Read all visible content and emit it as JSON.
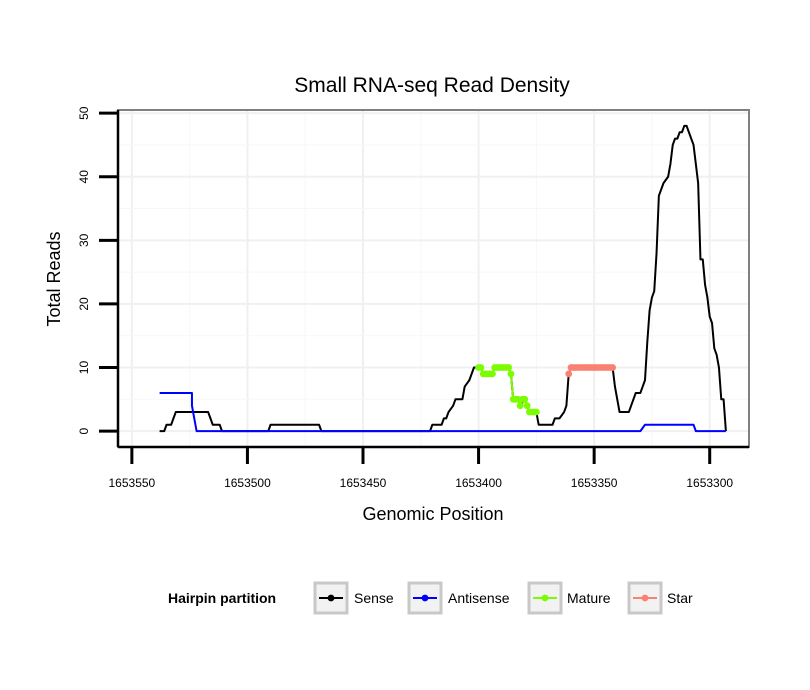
{
  "chart_data": {
    "type": "line",
    "title": "Small RNA-seq Read Density",
    "xlabel": "Genomic Position",
    "ylabel": "Total Reads",
    "xlim": [
      1653556,
      1653283
    ],
    "x_reversed": true,
    "ylim": [
      -2.5,
      50.5
    ],
    "x_ticks": [
      1653550,
      1653500,
      1653450,
      1653400,
      1653350,
      1653300
    ],
    "y_ticks": [
      0,
      10,
      20,
      30,
      40,
      50
    ],
    "grid": true,
    "legend": {
      "title": "Hairpin partition",
      "placement": "bottom",
      "entries": [
        {
          "name": "Sense",
          "color": "#000000"
        },
        {
          "name": "Antisense",
          "color": "#0000ff"
        },
        {
          "name": "Mature",
          "color": "#7cfc00"
        },
        {
          "name": "Star",
          "color": "#fa8072"
        }
      ]
    },
    "series": [
      {
        "name": "Sense",
        "color": "#000000",
        "style": "line",
        "points": [
          [
            1653538,
            0
          ],
          [
            1653536,
            0
          ],
          [
            1653535,
            1
          ],
          [
            1653533,
            1
          ],
          [
            1653532,
            2
          ],
          [
            1653531,
            3
          ],
          [
            1653526,
            3
          ],
          [
            1653522,
            3
          ],
          [
            1653520,
            3
          ],
          [
            1653517,
            3
          ],
          [
            1653516,
            2
          ],
          [
            1653515,
            1
          ],
          [
            1653512,
            1
          ],
          [
            1653511,
            0
          ],
          [
            1653502,
            0
          ],
          [
            1653492,
            0
          ],
          [
            1653491,
            0
          ],
          [
            1653490,
            1
          ],
          [
            1653470,
            1
          ],
          [
            1653469,
            1
          ],
          [
            1653468,
            0
          ],
          [
            1653432,
            0
          ],
          [
            1653421,
            0
          ],
          [
            1653420,
            1
          ],
          [
            1653416,
            1
          ],
          [
            1653415,
            2
          ],
          [
            1653414,
            2
          ],
          [
            1653413,
            3
          ],
          [
            1653411,
            4
          ],
          [
            1653410,
            5
          ],
          [
            1653407,
            5
          ],
          [
            1653406,
            7
          ],
          [
            1653404,
            8
          ],
          [
            1653403,
            9
          ],
          [
            1653402,
            10
          ],
          [
            1653399,
            10
          ],
          [
            1653398,
            9
          ],
          [
            1653394,
            9
          ],
          [
            1653393,
            10
          ],
          [
            1653387,
            10
          ],
          [
            1653386,
            9
          ],
          [
            1653385,
            5
          ],
          [
            1653383,
            5
          ],
          [
            1653382,
            4
          ],
          [
            1653380,
            5
          ],
          [
            1653379,
            4
          ],
          [
            1653378,
            3
          ],
          [
            1653375,
            3
          ],
          [
            1653374,
            1
          ],
          [
            1653368,
            1
          ],
          [
            1653367,
            2
          ],
          [
            1653365,
            2
          ],
          [
            1653363,
            3
          ],
          [
            1653362,
            4
          ],
          [
            1653361,
            9
          ],
          [
            1653360,
            10
          ],
          [
            1653342,
            10
          ],
          [
            1653341,
            7
          ],
          [
            1653339,
            3
          ],
          [
            1653335,
            3
          ],
          [
            1653334,
            4
          ],
          [
            1653333,
            5
          ],
          [
            1653332,
            6
          ],
          [
            1653330,
            6
          ],
          [
            1653329,
            7
          ],
          [
            1653328,
            8
          ],
          [
            1653327,
            14
          ],
          [
            1653326,
            19
          ],
          [
            1653325,
            21
          ],
          [
            1653324,
            22
          ],
          [
            1653323,
            28
          ],
          [
            1653322,
            37
          ],
          [
            1653321,
            38
          ],
          [
            1653320,
            39
          ],
          [
            1653318,
            40
          ],
          [
            1653317,
            42
          ],
          [
            1653316,
            45
          ],
          [
            1653315,
            46
          ],
          [
            1653314,
            46
          ],
          [
            1653313,
            47
          ],
          [
            1653312,
            47
          ],
          [
            1653311,
            48
          ],
          [
            1653310,
            48
          ],
          [
            1653309,
            47
          ],
          [
            1653308,
            46
          ],
          [
            1653307,
            45
          ],
          [
            1653306,
            42
          ],
          [
            1653305,
            39
          ],
          [
            1653304,
            27
          ],
          [
            1653303,
            27
          ],
          [
            1653302,
            23
          ],
          [
            1653301,
            21
          ],
          [
            1653300,
            18
          ],
          [
            1653299,
            17
          ],
          [
            1653298,
            13
          ],
          [
            1653297,
            12
          ],
          [
            1653296,
            10
          ],
          [
            1653295,
            5
          ],
          [
            1653294,
            5
          ],
          [
            1653293,
            0
          ]
        ]
      },
      {
        "name": "Antisense",
        "color": "#0000ff",
        "style": "line",
        "points": [
          [
            1653538,
            6
          ],
          [
            1653524,
            6
          ],
          [
            1653524,
            4
          ],
          [
            1653523,
            2
          ],
          [
            1653522,
            0
          ],
          [
            1653506,
            0
          ],
          [
            1653470,
            0
          ],
          [
            1653468,
            0
          ],
          [
            1653424,
            0
          ],
          [
            1653380,
            0
          ],
          [
            1653330,
            0
          ],
          [
            1653328,
            1
          ],
          [
            1653307,
            1
          ],
          [
            1653306,
            0
          ],
          [
            1653293,
            0
          ]
        ]
      },
      {
        "name": "Mature",
        "color": "#7cfc00",
        "style": "points",
        "points": [
          [
            1653400,
            10
          ],
          [
            1653399,
            10
          ],
          [
            1653398,
            9
          ],
          [
            1653397,
            9
          ],
          [
            1653396,
            9
          ],
          [
            1653395,
            9
          ],
          [
            1653394,
            9
          ],
          [
            1653393,
            10
          ],
          [
            1653392,
            10
          ],
          [
            1653391,
            10
          ],
          [
            1653390,
            10
          ],
          [
            1653389,
            10
          ],
          [
            1653388,
            10
          ],
          [
            1653387,
            10
          ],
          [
            1653386,
            9
          ],
          [
            1653385,
            5
          ],
          [
            1653384,
            5
          ],
          [
            1653383,
            5
          ],
          [
            1653382,
            4
          ],
          [
            1653381,
            5
          ],
          [
            1653380,
            5
          ],
          [
            1653379,
            4
          ],
          [
            1653378,
            3
          ],
          [
            1653377,
            3
          ],
          [
            1653376,
            3
          ],
          [
            1653375,
            3
          ]
        ]
      },
      {
        "name": "Star",
        "color": "#fa8072",
        "style": "points",
        "points": [
          [
            1653361,
            9
          ],
          [
            1653360,
            10
          ],
          [
            1653359,
            10
          ],
          [
            1653358,
            10
          ],
          [
            1653357,
            10
          ],
          [
            1653356,
            10
          ],
          [
            1653355,
            10
          ],
          [
            1653354,
            10
          ],
          [
            1653353,
            10
          ],
          [
            1653352,
            10
          ],
          [
            1653351,
            10
          ],
          [
            1653350,
            10
          ],
          [
            1653349,
            10
          ],
          [
            1653348,
            10
          ],
          [
            1653347,
            10
          ],
          [
            1653346,
            10
          ],
          [
            1653345,
            10
          ],
          [
            1653344,
            10
          ],
          [
            1653343,
            10
          ],
          [
            1653342,
            10
          ]
        ]
      }
    ]
  }
}
